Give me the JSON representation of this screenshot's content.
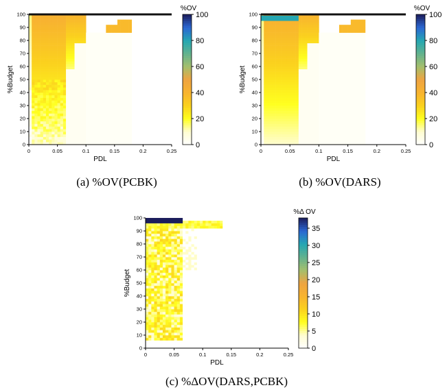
{
  "colors": {
    "colormap": [
      "#ffffff",
      "#fffdd2",
      "#ffff1f",
      "#fbd11e",
      "#f8b42f",
      "#eea442",
      "#a4bf6d",
      "#62b28e",
      "#25a7b2",
      "#2b67d3",
      "#1c1e5c"
    ],
    "axis": "#000000",
    "top_line": "#111111"
  },
  "chart_data": [
    {
      "id": "a",
      "type": "heatmap",
      "caption": "(a)  %OV(PCBK)",
      "xlabel": "PDL",
      "ylabel": "%Budget",
      "colorbar_label": "%OV",
      "xlim": [
        0,
        0.25
      ],
      "ylim": [
        0,
        100
      ],
      "xticks": [
        0,
        0.05,
        0.1,
        0.15,
        0.2,
        0.25
      ],
      "yticks": [
        0,
        10,
        20,
        30,
        40,
        50,
        60,
        70,
        80,
        90,
        100
      ],
      "clim": [
        0,
        100
      ],
      "cticks": [
        0,
        20,
        40,
        60,
        80,
        100
      ],
      "cell_x_step": 0.0025,
      "cell_y_step": 1,
      "top_row_value": 100,
      "regions": [
        {
          "x": [
            0,
            0.0025
          ],
          "y": [
            0,
            100
          ],
          "value": 0
        },
        {
          "x": [
            0.0025,
            0.065
          ],
          "y": [
            5,
            99
          ],
          "value": 20
        },
        {
          "x": [
            0.065,
            0.1
          ],
          "y": [
            15,
            99
          ],
          "value": 5
        },
        {
          "x": [
            0.1,
            0.18
          ],
          "y": [
            5,
            99
          ],
          "value": 5
        },
        {
          "x": [
            0.18,
            0.25
          ],
          "y": [
            0,
            100
          ],
          "value": 0
        }
      ],
      "frontier": [
        [
          0.1,
          86
        ],
        [
          0.135,
          92
        ],
        [
          0.155,
          96
        ],
        [
          0.18,
          98
        ]
      ]
    },
    {
      "id": "b",
      "type": "heatmap",
      "caption": "(b)  %OV(DARS)",
      "xlabel": "PDL",
      "ylabel": "%Budget",
      "colorbar_label": "%OV",
      "xlim": [
        0,
        0.25
      ],
      "ylim": [
        0,
        100
      ],
      "xticks": [
        0,
        0.05,
        0.1,
        0.15,
        0.2,
        0.25
      ],
      "yticks": [
        0,
        10,
        20,
        30,
        40,
        50,
        60,
        70,
        80,
        90,
        100
      ],
      "clim": [
        0,
        100
      ],
      "cticks": [
        0,
        20,
        40,
        60,
        80,
        100
      ],
      "cell_x_step": 0.0025,
      "cell_y_step": 1,
      "top_row_value": 100,
      "regions": [
        {
          "x": [
            0.0025,
            0.065
          ],
          "y": [
            5,
            99
          ],
          "value": 20
        },
        {
          "x": [
            0.065,
            0.1
          ],
          "y": [
            15,
            99
          ],
          "value": 5
        },
        {
          "x": [
            0.1,
            0.18
          ],
          "y": [
            5,
            99
          ],
          "value": 5
        }
      ],
      "frontier": [
        [
          0.1,
          86
        ],
        [
          0.135,
          92
        ],
        [
          0.155,
          96
        ],
        [
          0.18,
          98
        ]
      ],
      "blue_band": {
        "x": [
          0,
          0.065
        ],
        "y": [
          95,
          99
        ],
        "value": 80
      }
    },
    {
      "id": "c",
      "type": "heatmap",
      "caption": "(c)  %ΔOV(DARS,PCBK)",
      "xlabel": "PDL",
      "ylabel": "%Budget",
      "colorbar_label": "%Δ OV",
      "xlim": [
        0,
        0.25
      ],
      "ylim": [
        0,
        100
      ],
      "xticks": [
        0,
        0.05,
        0.1,
        0.15,
        0.2,
        0.25
      ],
      "yticks": [
        0,
        10,
        20,
        30,
        40,
        50,
        60,
        70,
        80,
        90,
        100
      ],
      "clim": [
        0,
        38
      ],
      "cticks": [
        0,
        5,
        10,
        15,
        20,
        25,
        30,
        35
      ],
      "cell_x_step": 0.0025,
      "cell_y_step": 1,
      "dark_band": {
        "x": [
          0,
          0.065
        ],
        "y": [
          96,
          100
        ],
        "value": 38
      },
      "extra_band": {
        "x": [
          0.065,
          0.135
        ],
        "y": [
          93,
          99
        ],
        "value": 5
      }
    }
  ]
}
